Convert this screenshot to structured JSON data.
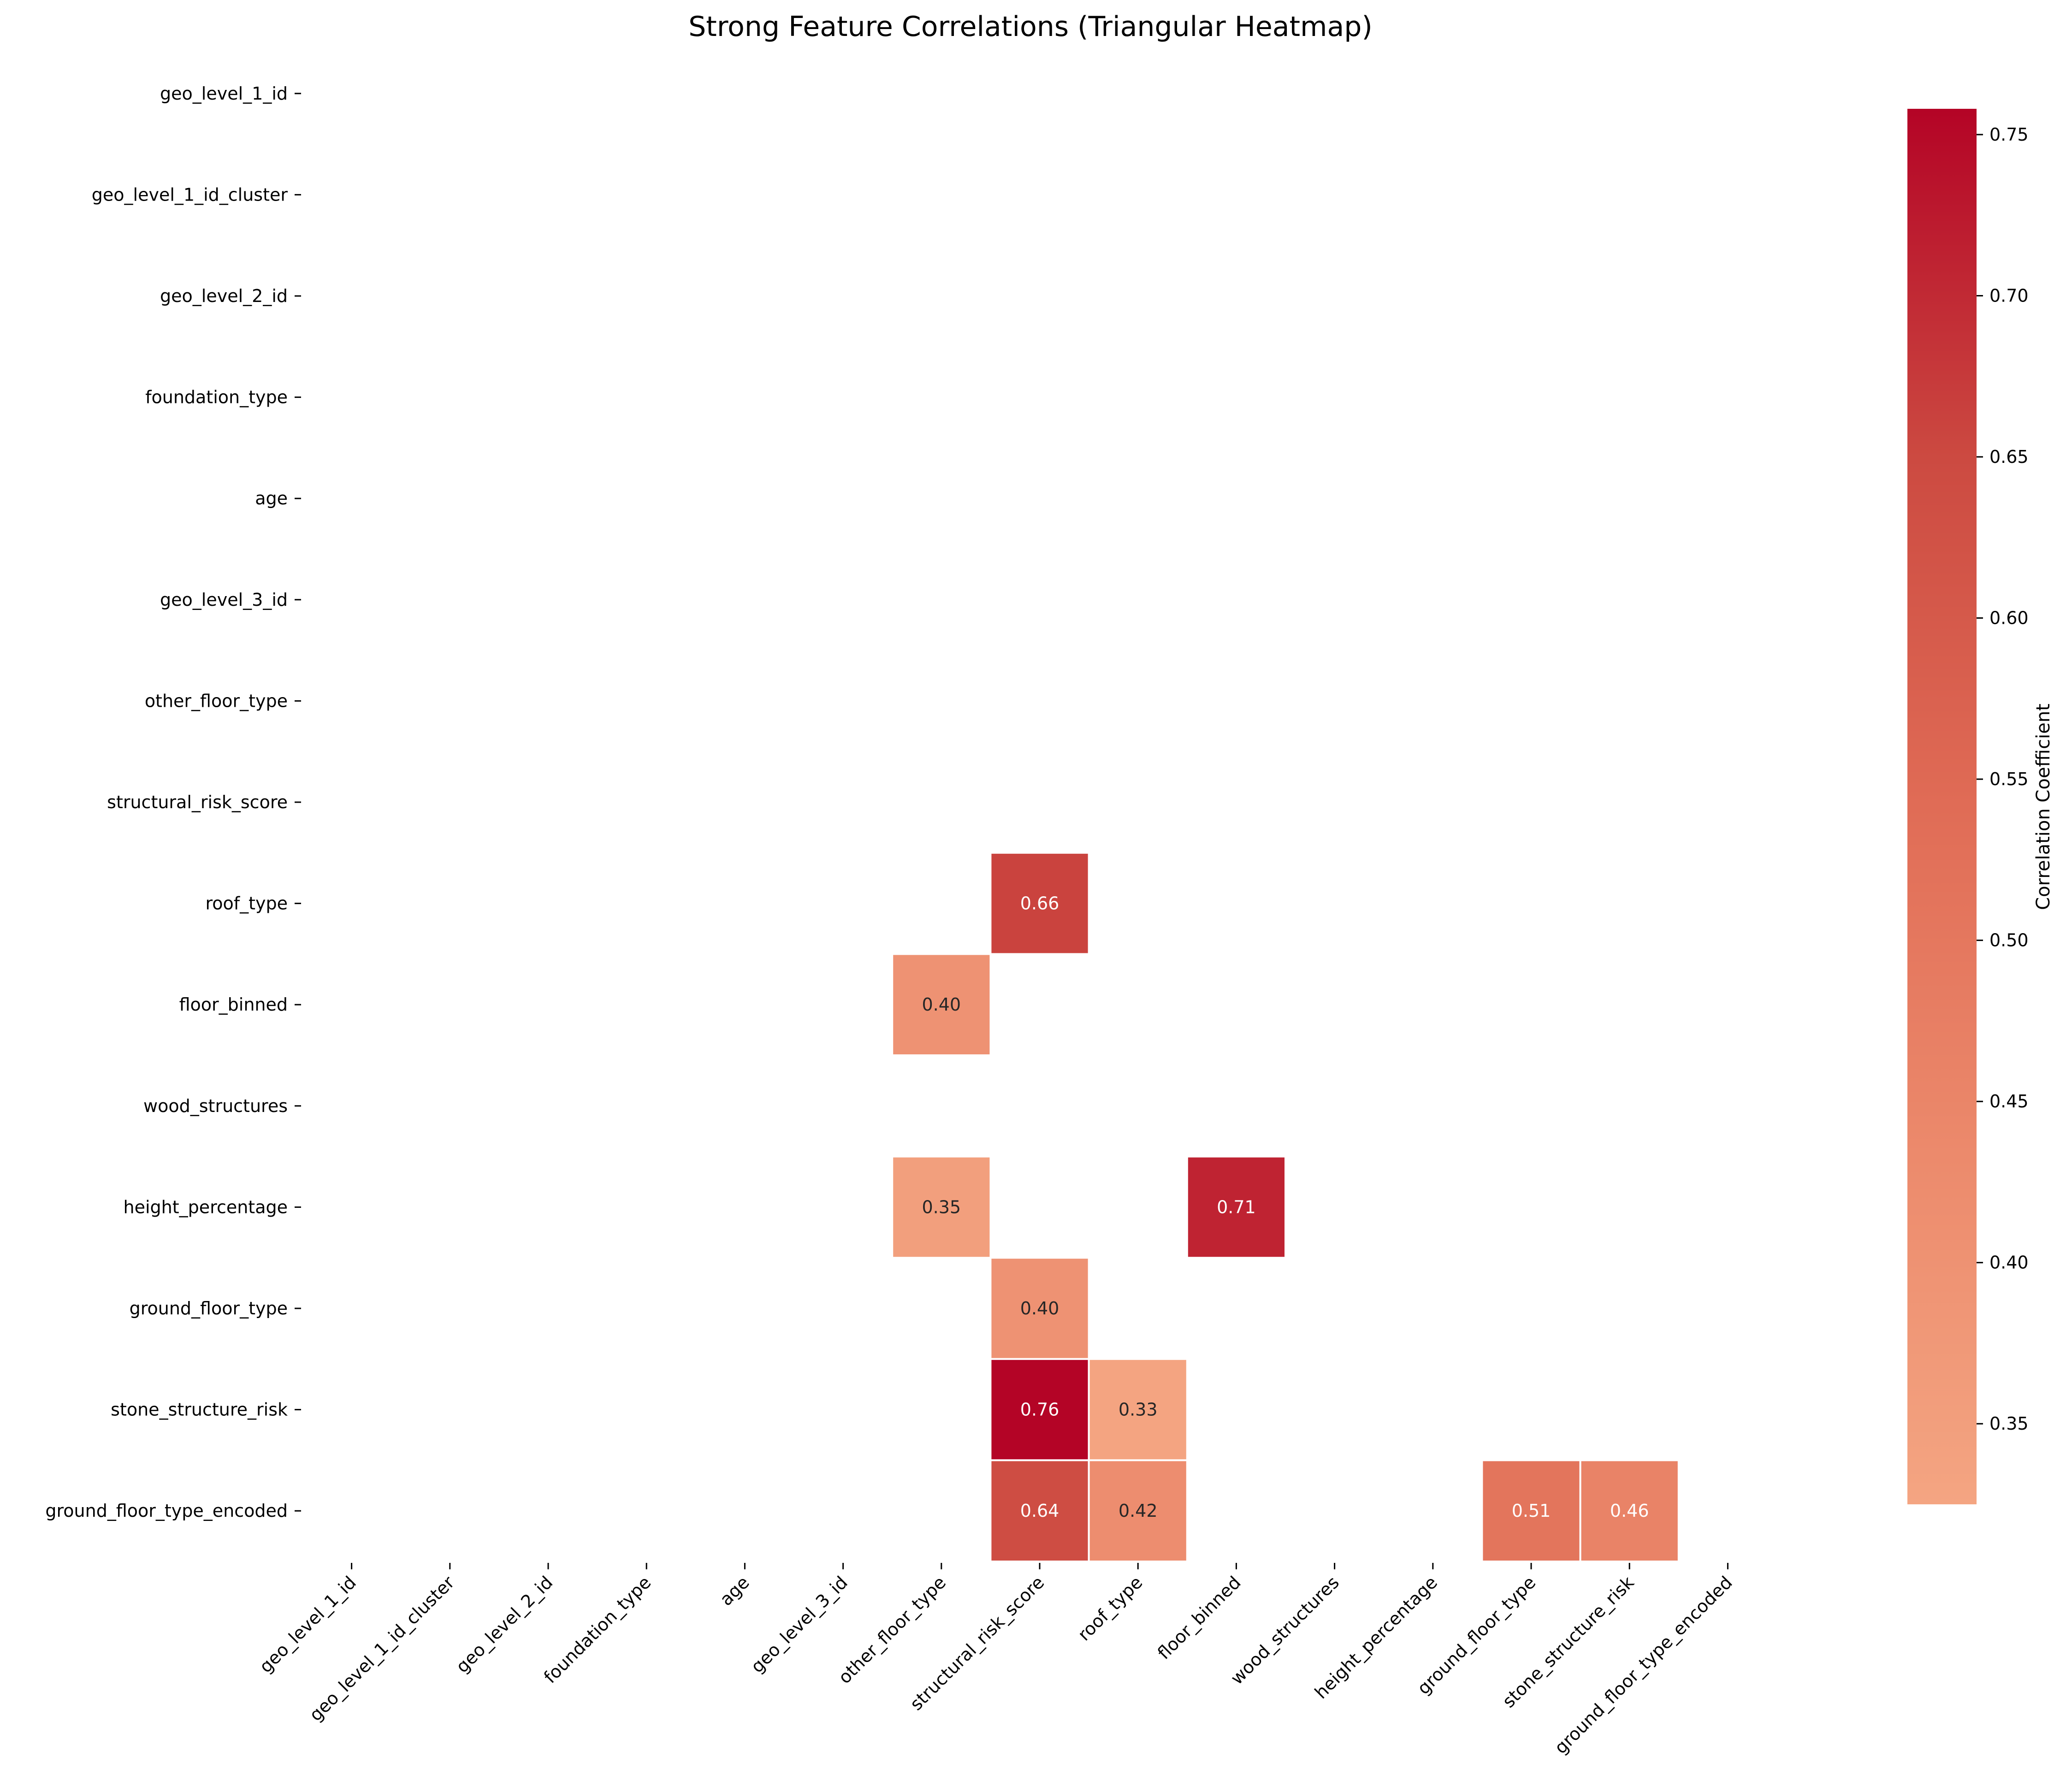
{
  "chart_data": {
    "type": "heatmap",
    "title": "Strong Feature Correlations (Triangular Heatmap)",
    "variables": [
      "geo_level_1_id",
      "geo_level_1_id_cluster",
      "geo_level_2_id",
      "foundation_type",
      "age",
      "geo_level_3_id",
      "other_floor_type",
      "structural_risk_score",
      "roof_type",
      "floor_binned",
      "wood_structures",
      "height_percentage",
      "ground_floor_type",
      "stone_structure_risk",
      "ground_floor_type_encoded"
    ],
    "cells": [
      {
        "row": "roof_type",
        "col": "structural_risk_score",
        "value": 0.66,
        "label": "0.66"
      },
      {
        "row": "floor_binned",
        "col": "other_floor_type",
        "value": 0.4,
        "label": "0.40"
      },
      {
        "row": "height_percentage",
        "col": "other_floor_type",
        "value": 0.35,
        "label": "0.35"
      },
      {
        "row": "height_percentage",
        "col": "floor_binned",
        "value": 0.71,
        "label": "0.71"
      },
      {
        "row": "ground_floor_type",
        "col": "structural_risk_score",
        "value": 0.4,
        "label": "0.40"
      },
      {
        "row": "stone_structure_risk",
        "col": "structural_risk_score",
        "value": 0.76,
        "label": "0.76"
      },
      {
        "row": "stone_structure_risk",
        "col": "roof_type",
        "value": 0.33,
        "label": "0.33"
      },
      {
        "row": "ground_floor_type_encoded",
        "col": "structural_risk_score",
        "value": 0.64,
        "label": "0.64"
      },
      {
        "row": "ground_floor_type_encoded",
        "col": "roof_type",
        "value": 0.42,
        "label": "0.42"
      },
      {
        "row": "ground_floor_type_encoded",
        "col": "ground_floor_type",
        "value": 0.51,
        "label": "0.51"
      },
      {
        "row": "ground_floor_type_encoded",
        "col": "stone_structure_risk",
        "value": 0.46,
        "label": "0.46"
      }
    ],
    "colorbar": {
      "label": "Correlation Coefficient",
      "range": [
        0.325,
        0.758
      ],
      "ticks": [
        "0.35",
        "0.40",
        "0.45",
        "0.50",
        "0.55",
        "0.60",
        "0.65",
        "0.70",
        "0.75"
      ],
      "colormap": "coolwarm (upper half)",
      "low_color": "#f4a582",
      "high_color": "#b40426"
    },
    "grid": false
  }
}
